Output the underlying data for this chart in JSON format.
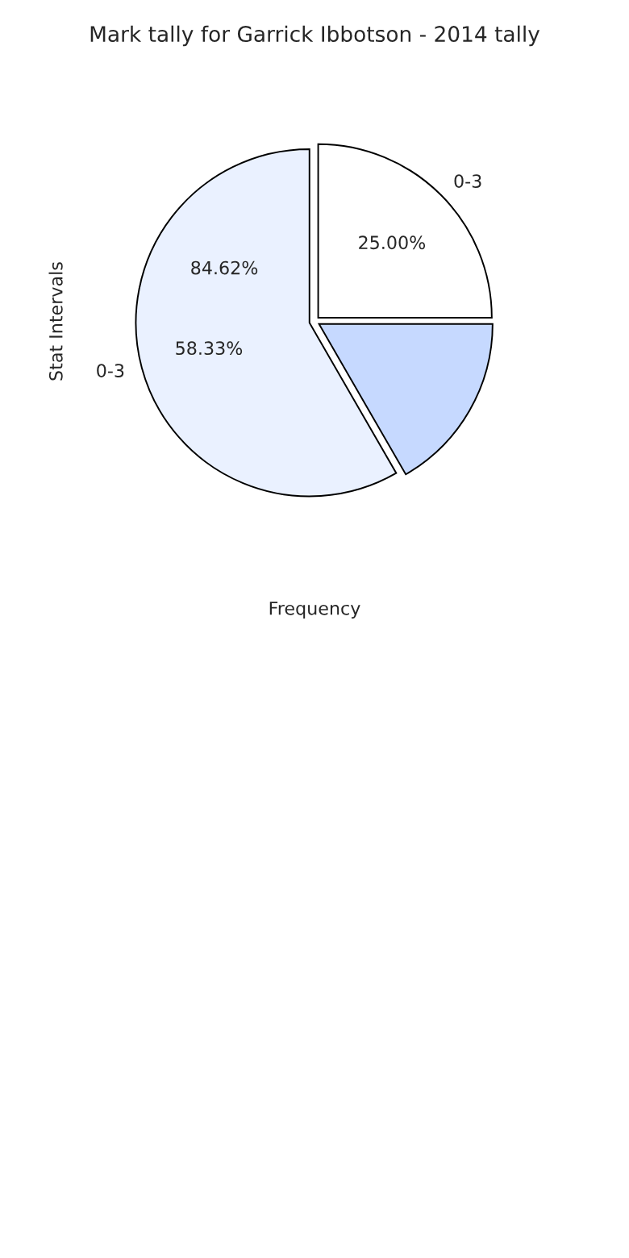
{
  "chart_data": {
    "type": "pie",
    "title": "Mark tally for Garrick Ibbotson - 2014 tally",
    "xlabel": "Frequency",
    "ylabel": "Stat Intervals",
    "categories": [
      "0-3",
      null,
      "0-3"
    ],
    "values": [
      25.0,
      16.67,
      58.33
    ],
    "colors": [
      "#ffffff",
      "#c6d9ff",
      "#eaf1ff"
    ],
    "value_labels": [
      "25.00%",
      null,
      "58.33%"
    ],
    "annotations": [
      "84.62%"
    ],
    "legend": false
  }
}
